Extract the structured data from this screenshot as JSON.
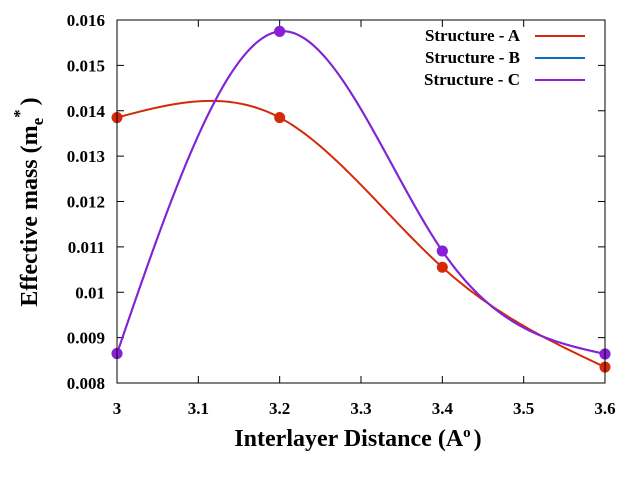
{
  "chart_data": {
    "type": "line",
    "xlabel": "Interlayer Distance (A",
    "xlabel_sup": "o",
    "xlabel_close": ")",
    "ylabel": "Effective mass (m",
    "ylabel_sub": "e",
    "ylabel_sup": "*",
    "ylabel_close": ")",
    "xlim": [
      3.0,
      3.6
    ],
    "ylim": [
      0.008,
      0.016
    ],
    "x_ticks": [
      {
        "value": 3.0,
        "label": "3"
      },
      {
        "value": 3.1,
        "label": "3.1"
      },
      {
        "value": 3.2,
        "label": "3.2"
      },
      {
        "value": 3.3,
        "label": "3.3"
      },
      {
        "value": 3.4,
        "label": "3.4"
      },
      {
        "value": 3.5,
        "label": "3.5"
      },
      {
        "value": 3.6,
        "label": "3.6"
      }
    ],
    "y_ticks": [
      {
        "value": 0.008,
        "label": "0.008"
      },
      {
        "value": 0.009,
        "label": "0.009"
      },
      {
        "value": 0.01,
        "label": "0.01"
      },
      {
        "value": 0.011,
        "label": "0.011"
      },
      {
        "value": 0.012,
        "label": "0.012"
      },
      {
        "value": 0.013,
        "label": "0.013"
      },
      {
        "value": 0.014,
        "label": "0.014"
      },
      {
        "value": 0.015,
        "label": "0.015"
      },
      {
        "value": 0.016,
        "label": "0.016"
      }
    ],
    "x": [
      3.0,
      3.2,
      3.4,
      3.6
    ],
    "series": [
      {
        "name": "Structure - A",
        "color": "#d42a0a",
        "values": [
          0.01385,
          0.01385,
          0.01055,
          0.00835
        ]
      },
      {
        "name": "Structure - B",
        "color": "#0a6fc0",
        "values": [
          0.00865,
          0.01575,
          0.01091,
          0.00864
        ]
      },
      {
        "name": "Structure - C",
        "color": "#8a1fd6",
        "values": [
          0.00865,
          0.01575,
          0.01091,
          0.00864
        ]
      }
    ],
    "legend_position": "top-right",
    "grid": false
  }
}
